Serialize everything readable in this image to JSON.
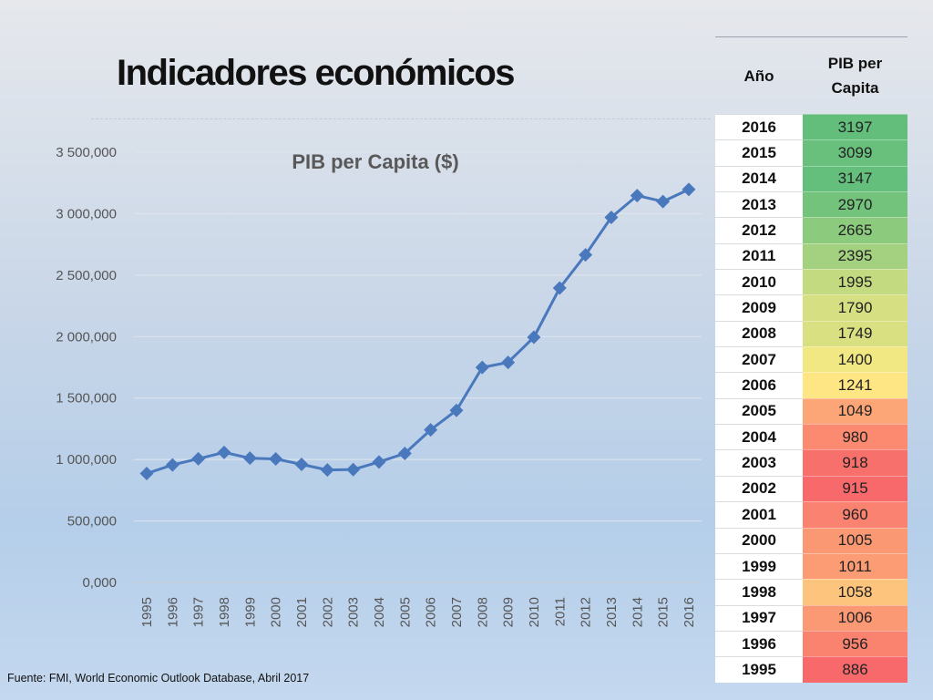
{
  "slide": {
    "title": "Indicadores económicos",
    "source": "Fuente: FMI, World Economic Outlook Database, Abril 2017"
  },
  "table": {
    "header_year": "Año",
    "header_value": "PIB per Capita",
    "rows": [
      {
        "year": "2016",
        "value": "3197",
        "color": "#63be7b"
      },
      {
        "year": "2015",
        "value": "3099",
        "color": "#68c07c"
      },
      {
        "year": "2014",
        "value": "3147",
        "color": "#65bf7c"
      },
      {
        "year": "2013",
        "value": "2970",
        "color": "#73c37c"
      },
      {
        "year": "2012",
        "value": "2665",
        "color": "#8cca7e"
      },
      {
        "year": "2011",
        "value": "2395",
        "color": "#a3d17f"
      },
      {
        "year": "2010",
        "value": "1995",
        "color": "#c4da80"
      },
      {
        "year": "2009",
        "value": "1790",
        "color": "#d6df81"
      },
      {
        "year": "2008",
        "value": "1749",
        "color": "#d9e081"
      },
      {
        "year": "2007",
        "value": "1400",
        "color": "#f1e783"
      },
      {
        "year": "2006",
        "value": "1241",
        "color": "#fde683"
      },
      {
        "year": "2005",
        "value": "1049",
        "color": "#fca577"
      },
      {
        "year": "2004",
        "value": "980",
        "color": "#fb8a70"
      },
      {
        "year": "2003",
        "value": "918",
        "color": "#f8706b"
      },
      {
        "year": "2002",
        "value": "915",
        "color": "#f8696b"
      },
      {
        "year": "2001",
        "value": "960",
        "color": "#fa8270"
      },
      {
        "year": "2000",
        "value": "1005",
        "color": "#fb9874"
      },
      {
        "year": "1999",
        "value": "1011",
        "color": "#fc9c75"
      },
      {
        "year": "1998",
        "value": "1058",
        "color": "#fdc47e"
      },
      {
        "year": "1997",
        "value": "1006",
        "color": "#fb9975"
      },
      {
        "year": "1996",
        "value": "956",
        "color": "#fa8370"
      },
      {
        "year": "1995",
        "value": "886",
        "color": "#f8696b"
      }
    ]
  },
  "chart_data": {
    "type": "line",
    "title": "PIB per Capita ($)",
    "xlabel": "",
    "ylabel": "",
    "x": [
      "1995",
      "1996",
      "1997",
      "1998",
      "1999",
      "2000",
      "2001",
      "2002",
      "2003",
      "2004",
      "2005",
      "2006",
      "2007",
      "2008",
      "2009",
      "2010",
      "2011",
      "2012",
      "2013",
      "2014",
      "2015",
      "2016"
    ],
    "series": [
      {
        "values": [
          886,
          956,
          1006,
          1058,
          1011,
          1005,
          960,
          915,
          918,
          980,
          1049,
          1241,
          1400,
          1749,
          1790,
          1995,
          2395,
          2665,
          2970,
          3147,
          3099,
          3197
        ]
      }
    ],
    "y_scale_factor": 1000,
    "ylim": [
      0,
      3500000
    ],
    "y_ticks": [
      0,
      500000,
      1000000,
      1500000,
      2000000,
      2500000,
      3000000,
      3500000
    ],
    "y_tick_labels": [
      "0,000",
      "500,000",
      "1 000,000",
      "1 500,000",
      "2 000,000",
      "2 500,000",
      "3 000,000",
      "3 500,000"
    ],
    "grid": true,
    "legend": "none",
    "line_color": "#4a78bd",
    "marker": "diamond"
  }
}
